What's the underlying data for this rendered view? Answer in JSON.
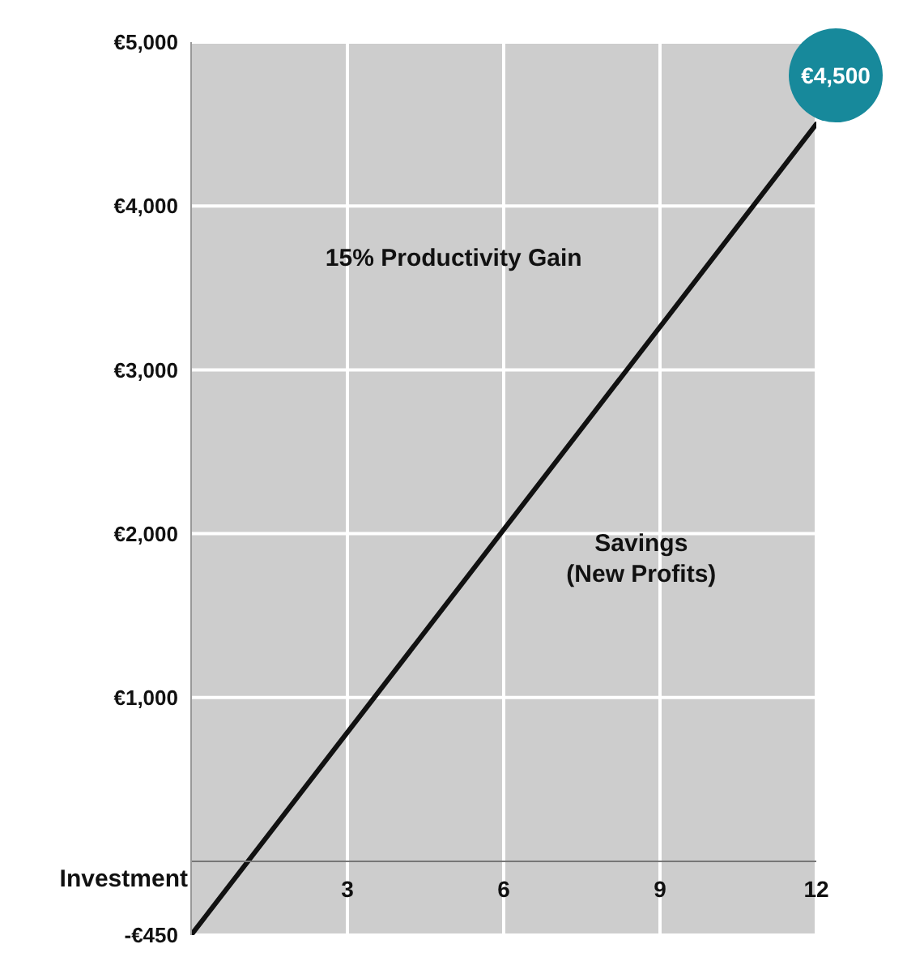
{
  "chart_data": {
    "type": "line",
    "x": [
      0,
      12
    ],
    "values": [
      -450,
      4500
    ],
    "value_labels": [
      null,
      "€4,500"
    ],
    "color": "#111111",
    "xlim": [
      0,
      12
    ],
    "xticks": [
      3,
      6,
      9,
      12
    ],
    "ylim": [
      -450,
      5000
    ],
    "yticks": [
      {
        "value": -450,
        "label": "-€450"
      },
      {
        "value": 1000,
        "label": "€1,000"
      },
      {
        "value": 2000,
        "label": "€2,000"
      },
      {
        "value": 3000,
        "label": "€3,000"
      },
      {
        "value": 4000,
        "label": "€4,000"
      },
      {
        "value": 5000,
        "label": "€5,000"
      }
    ],
    "grid": true,
    "annotations": [
      "15% Productivity Gain",
      "Savings\n(New Profits)",
      {
        "text": "Investment",
        "x": 0,
        "y": -450
      }
    ]
  }
}
